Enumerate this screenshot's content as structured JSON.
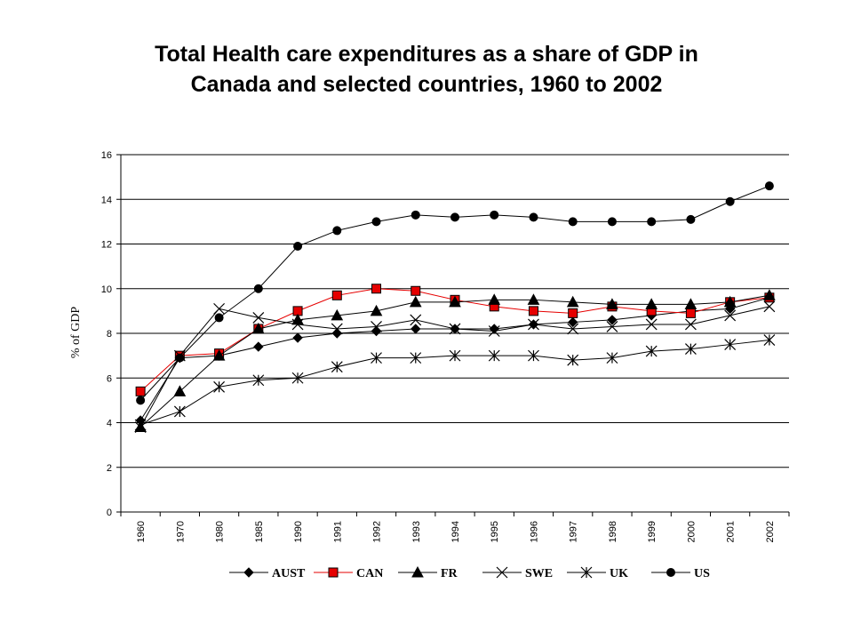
{
  "chart_data": {
    "type": "line",
    "title_line1": "Total Health care expenditures as a share of GDP in",
    "title_line2": "Canada and selected countries, 1960 to 2002",
    "ylabel": "% of GDP",
    "xlabel": "",
    "ylim": [
      0,
      16
    ],
    "yticks": [
      0,
      2,
      4,
      6,
      8,
      10,
      12,
      14,
      16
    ],
    "grid": "horizontal",
    "legend_position": "bottom",
    "categories": [
      "1960",
      "1970",
      "1980",
      "1985",
      "1990",
      "1991",
      "1992",
      "1993",
      "1994",
      "1995",
      "1996",
      "1997",
      "1998",
      "1999",
      "2000",
      "2001",
      "2002"
    ],
    "series": [
      {
        "name": "AUST",
        "marker": "diamond",
        "fill": "#000000",
        "color": "#000000",
        "values": [
          4.1,
          6.9,
          7.0,
          7.4,
          7.8,
          8.0,
          8.1,
          8.2,
          8.2,
          8.2,
          8.4,
          8.5,
          8.6,
          8.8,
          9.0,
          9.1,
          9.6
        ]
      },
      {
        "name": "CAN",
        "marker": "square",
        "fill": "#e60000",
        "color": "#e60000",
        "values": [
          5.4,
          7.0,
          7.1,
          8.2,
          9.0,
          9.7,
          10.0,
          9.9,
          9.5,
          9.2,
          9.0,
          8.9,
          9.2,
          9.0,
          8.9,
          9.4,
          9.6
        ]
      },
      {
        "name": "FR",
        "marker": "triangle",
        "fill": "#000000",
        "color": "#000000",
        "values": [
          3.8,
          5.4,
          7.0,
          8.2,
          8.6,
          8.8,
          9.0,
          9.4,
          9.4,
          9.5,
          9.5,
          9.4,
          9.3,
          9.3,
          9.3,
          9.4,
          9.7
        ]
      },
      {
        "name": "SWE",
        "marker": "x",
        "fill": "#000000",
        "color": "#000000",
        "values": [
          3.8,
          7.0,
          9.1,
          8.7,
          8.4,
          8.2,
          8.3,
          8.6,
          8.2,
          8.1,
          8.4,
          8.2,
          8.3,
          8.4,
          8.4,
          8.8,
          9.2
        ]
      },
      {
        "name": "UK",
        "marker": "star",
        "fill": "#000000",
        "color": "#000000",
        "values": [
          3.9,
          4.5,
          5.6,
          5.9,
          6.0,
          6.5,
          6.9,
          6.9,
          7.0,
          7.0,
          7.0,
          6.8,
          6.9,
          7.2,
          7.3,
          7.5,
          7.7
        ]
      },
      {
        "name": "US",
        "marker": "circle",
        "fill": "#000000",
        "color": "#000000",
        "values": [
          5.0,
          6.9,
          8.7,
          10.0,
          11.9,
          12.6,
          13.0,
          13.3,
          13.2,
          13.3,
          13.2,
          13.0,
          13.0,
          13.0,
          13.1,
          13.9,
          14.6
        ]
      }
    ]
  }
}
